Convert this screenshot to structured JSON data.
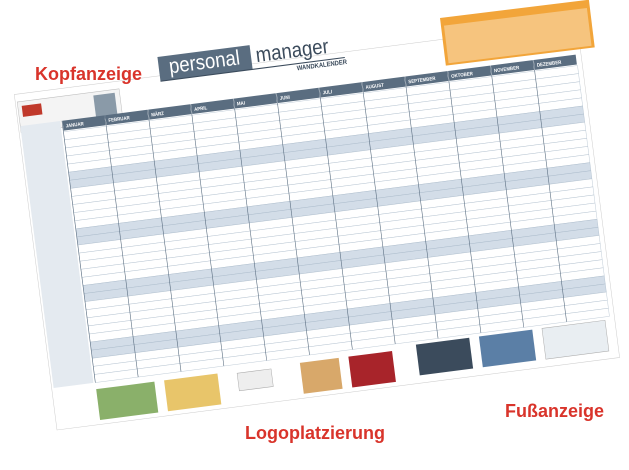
{
  "labels": {
    "head_ad": "Kopfanzeige",
    "foot_ad": "Fußanzeige",
    "logo": "Logoplatzierung"
  },
  "calendar": {
    "brand_light": "personal",
    "brand_bold": "manager",
    "subtitle": "WANDKALENDER",
    "months": [
      "JANUAR",
      "FEBRUAR",
      "MÄRZ",
      "APRIL",
      "MAI",
      "JUNI",
      "JULI",
      "AUGUST",
      "SEPTEMBER",
      "OKTOBER",
      "NOVEMBER",
      "DEZEMBER"
    ]
  }
}
